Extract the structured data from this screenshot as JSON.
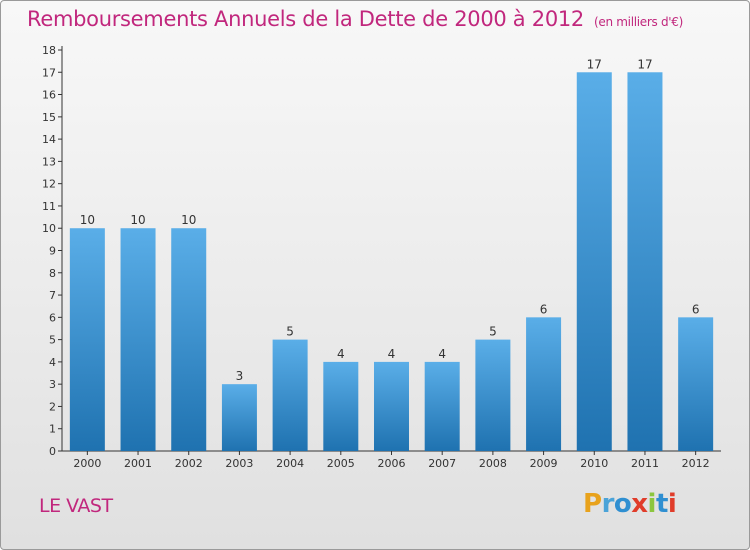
{
  "title": "Remboursements Annuels de la Dette de 2000 à 2012",
  "unit": "(en milliers d'€)",
  "place": "LE VAST",
  "logo": "Proxiti",
  "colors": {
    "title": "#c1277d",
    "bar_top": "#5aaee8",
    "bar_bottom": "#1f72b0",
    "axis": "#333333"
  },
  "chart_data": {
    "type": "bar",
    "title": "Remboursements Annuels de la Dette de 2000 à 2012",
    "categories": [
      "2000",
      "2001",
      "2002",
      "2003",
      "2004",
      "2005",
      "2006",
      "2007",
      "2008",
      "2009",
      "2010",
      "2011",
      "2012"
    ],
    "values": [
      10,
      10,
      10,
      3,
      5,
      4,
      4,
      4,
      5,
      6,
      17,
      17,
      6
    ],
    "ylim": [
      0,
      18
    ],
    "yticks": [
      0,
      1,
      2,
      3,
      4,
      5,
      6,
      7,
      8,
      9,
      10,
      11,
      12,
      13,
      14,
      15,
      16,
      17,
      18
    ],
    "xlabel": "",
    "ylabel": "",
    "grid": false,
    "legend": "none"
  }
}
